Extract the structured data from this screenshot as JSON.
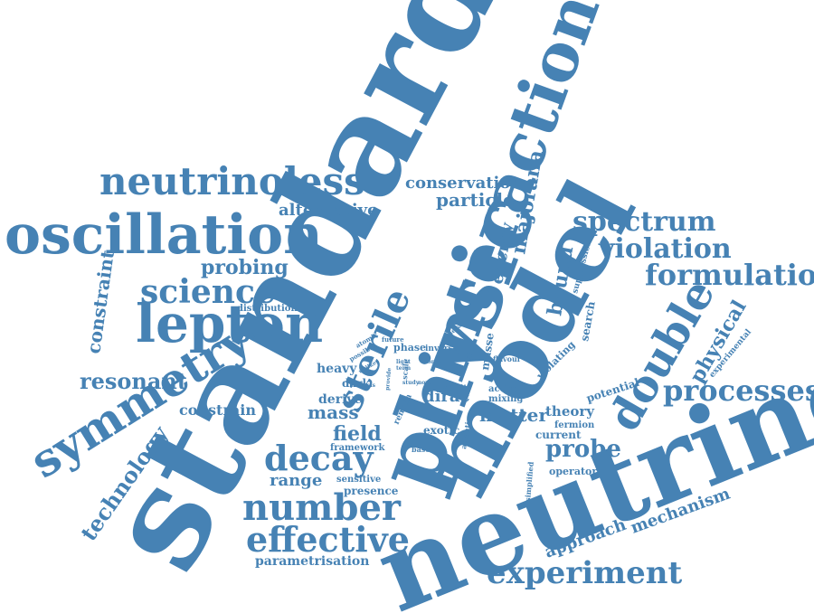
{
  "color": "#4682b4",
  "words": [
    {
      "text": "standard"
    },
    {
      "text": "neutrino"
    },
    {
      "text": "model"
    },
    {
      "text": "physic"
    },
    {
      "text": "interaction"
    },
    {
      "text": "oscillation"
    },
    {
      "text": "neutrinoless"
    },
    {
      "text": "lepton"
    },
    {
      "text": "symmetry"
    },
    {
      "text": "double"
    },
    {
      "text": "experiment"
    },
    {
      "text": "decay"
    },
    {
      "text": "number"
    },
    {
      "text": "effective"
    },
    {
      "text": "sterile"
    },
    {
      "text": "science"
    },
    {
      "text": "processes"
    },
    {
      "text": "formulation"
    },
    {
      "text": "violation"
    },
    {
      "text": "spectrum"
    },
    {
      "text": "technology"
    },
    {
      "text": "resonant"
    },
    {
      "text": "probing"
    },
    {
      "text": "alternative"
    },
    {
      "text": "conservation"
    },
    {
      "text": "particle"
    },
    {
      "text": "constraint"
    },
    {
      "text": "majorana"
    },
    {
      "text": "energy"
    },
    {
      "text": "bound"
    },
    {
      "text": "probe"
    },
    {
      "text": "field"
    },
    {
      "text": "physical"
    },
    {
      "text": "range"
    },
    {
      "text": "constrain"
    },
    {
      "text": "mechanism"
    },
    {
      "text": "approach"
    },
    {
      "text": "matter"
    },
    {
      "text": "mass"
    },
    {
      "text": "heavy"
    },
    {
      "text": "derive"
    },
    {
      "text": "dirac"
    },
    {
      "text": "theory"
    },
    {
      "text": "presence"
    },
    {
      "text": "sensitive"
    },
    {
      "text": "parametrisation"
    },
    {
      "text": "exotic"
    },
    {
      "text": "current"
    },
    {
      "text": "fermion"
    },
    {
      "text": "operator"
    },
    {
      "text": "potential"
    },
    {
      "text": "search"
    },
    {
      "text": "masse"
    },
    {
      "text": "limit"
    },
    {
      "text": "phase"
    },
    {
      "text": "inverse"
    },
    {
      "text": "dark"
    },
    {
      "text": "framework"
    },
    {
      "text": "distribution"
    },
    {
      "text": "experimental"
    },
    {
      "text": "suppression"
    },
    {
      "text": "violating"
    },
    {
      "text": "active"
    },
    {
      "text": "mixing"
    },
    {
      "text": "ability"
    },
    {
      "text": "baseline"
    },
    {
      "text": "remain"
    },
    {
      "text": "attention"
    },
    {
      "text": "simplified"
    },
    {
      "text": "flavour"
    },
    {
      "text": "general"
    },
    {
      "text": "future"
    },
    {
      "text": "possible"
    },
    {
      "text": "atomic"
    },
    {
      "text": "scale"
    },
    {
      "text": "light"
    },
    {
      "text": "term"
    },
    {
      "text": "force"
    },
    {
      "text": "provide"
    },
    {
      "text": "study"
    },
    {
      "text": "novel"
    },
    {
      "text": "thesis"
    },
    {
      "text": "unlike"
    }
  ]
}
